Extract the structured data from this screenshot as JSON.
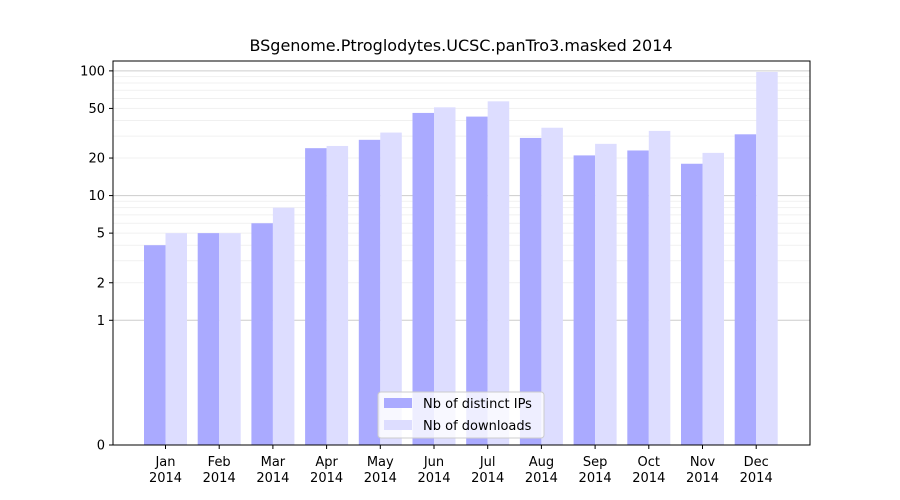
{
  "chart_data": {
    "type": "bar",
    "title": "BSgenome.Ptroglodytes.UCSC.panTro3.masked 2014",
    "xlabel": "",
    "ylabel": "",
    "yscale": "symlog",
    "ylim": [
      0,
      120
    ],
    "y_ticks": [
      0,
      1,
      2,
      5,
      10,
      20,
      50,
      100
    ],
    "categories": [
      [
        "Jan",
        "2014"
      ],
      [
        "Feb",
        "2014"
      ],
      [
        "Mar",
        "2014"
      ],
      [
        "Apr",
        "2014"
      ],
      [
        "May",
        "2014"
      ],
      [
        "Jun",
        "2014"
      ],
      [
        "Jul",
        "2014"
      ],
      [
        "Aug",
        "2014"
      ],
      [
        "Sep",
        "2014"
      ],
      [
        "Oct",
        "2014"
      ],
      [
        "Nov",
        "2014"
      ],
      [
        "Dec",
        "2014"
      ]
    ],
    "series": [
      {
        "name": "Nb of distinct IPs",
        "color": "#aaaaff",
        "values": [
          4,
          5,
          6,
          24,
          28,
          46,
          43,
          29,
          21,
          23,
          18,
          31
        ]
      },
      {
        "name": "Nb of downloads",
        "color": "#ddddff",
        "values": [
          5,
          5,
          8,
          25,
          32,
          51,
          57,
          35,
          26,
          33,
          22,
          98
        ]
      }
    ],
    "grid": true,
    "legend_position": "bottom-center"
  }
}
